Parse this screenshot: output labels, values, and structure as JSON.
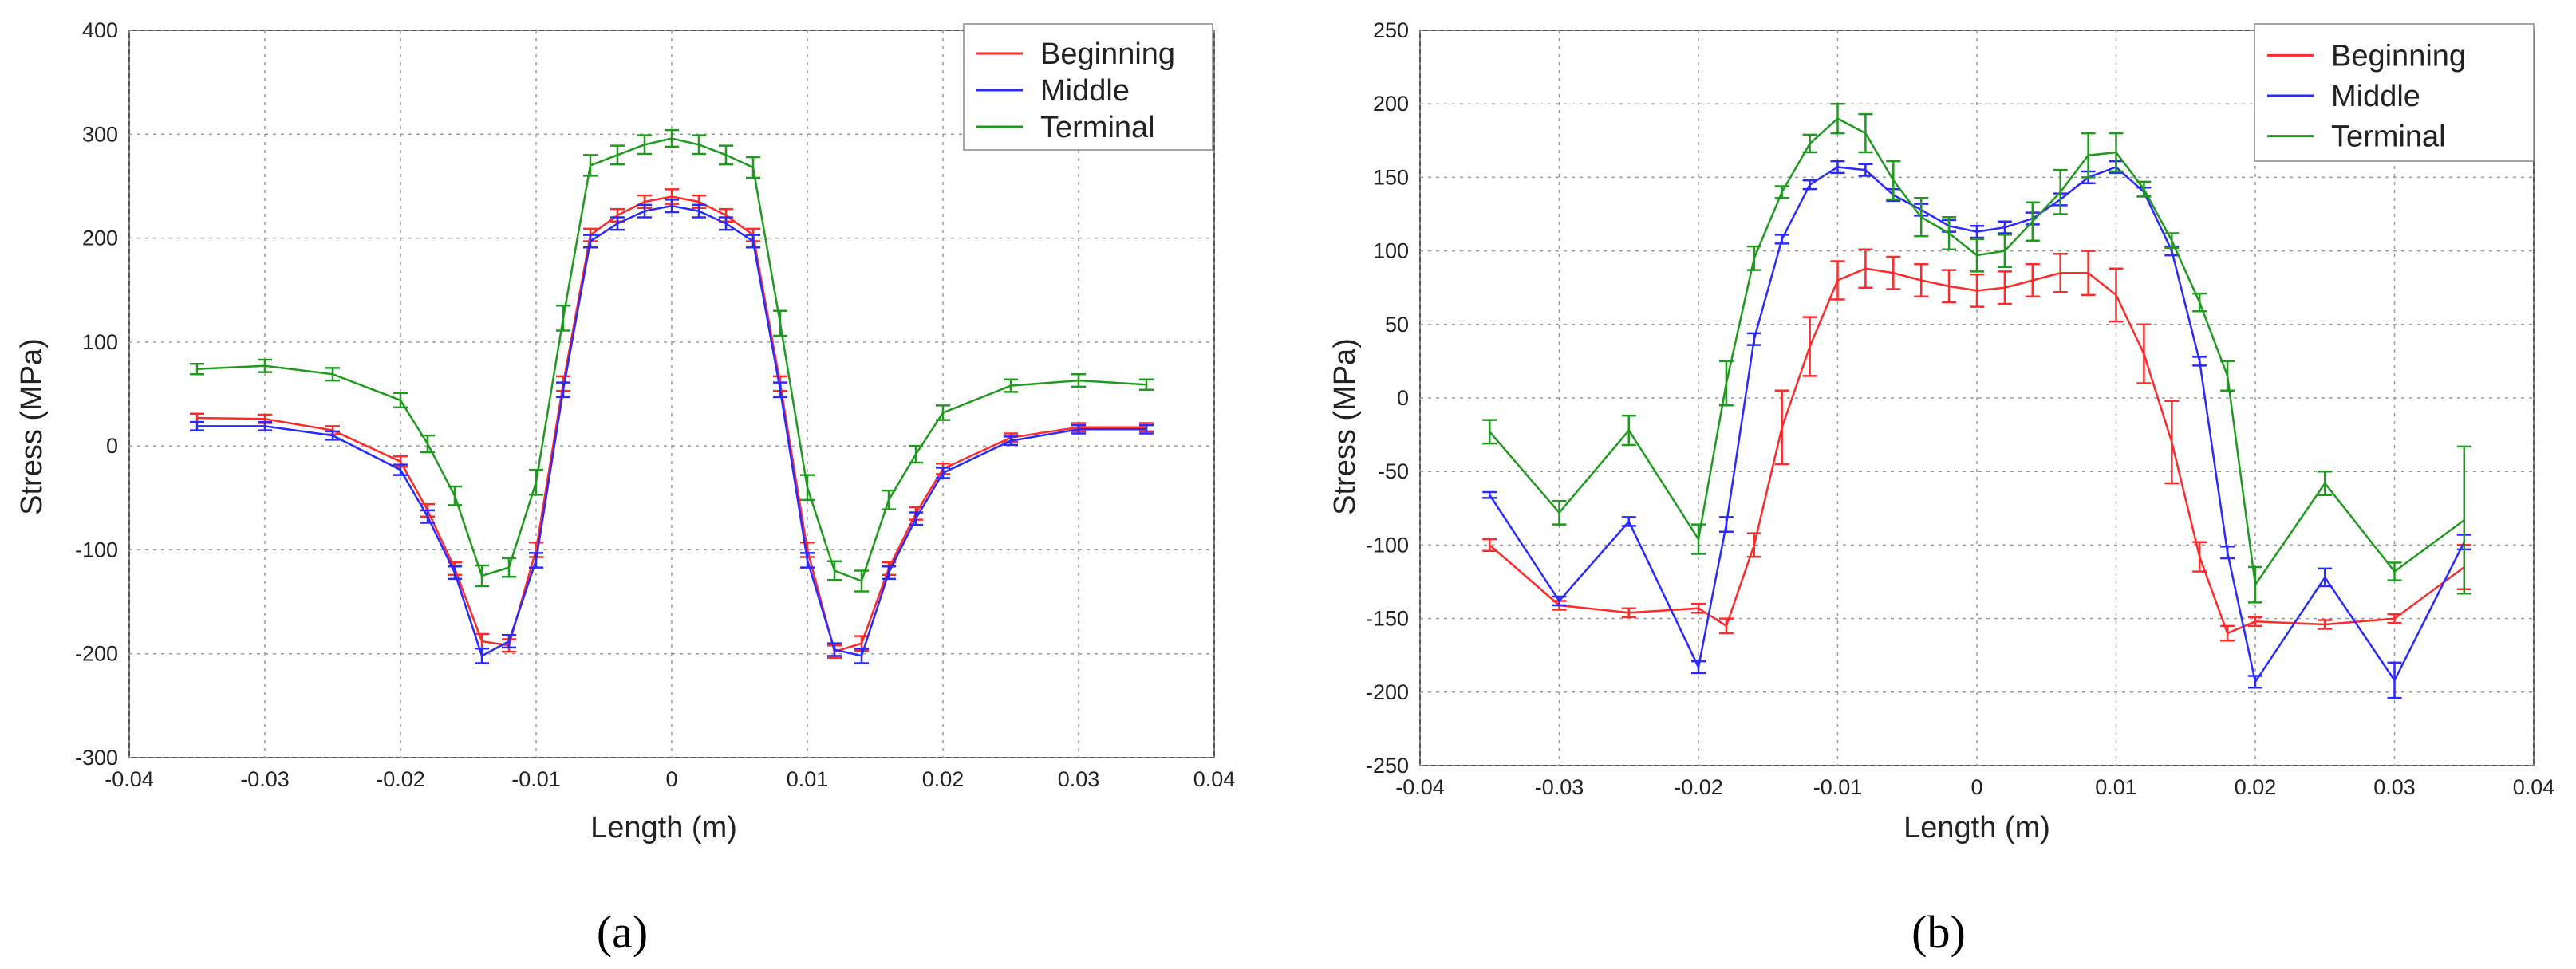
{
  "panel_labels": [
    "(a)",
    "(b)"
  ],
  "chart_data": [
    {
      "type": "line",
      "panel_label": "(a)",
      "xlabel": "Length (m)",
      "ylabel": "Stress (MPa)",
      "xlim": [
        -0.04,
        0.04
      ],
      "ylim": [
        -300,
        400
      ],
      "xticks": [
        -0.04,
        -0.03,
        -0.02,
        -0.01,
        0,
        0.01,
        0.02,
        0.03,
        0.04
      ],
      "xtick_labels": [
        "-0.04",
        "-0.03",
        "-0.02",
        "-0.01",
        "0",
        "0.01",
        "0.02",
        "0.03",
        "0.04"
      ],
      "yticks": [
        -300,
        -200,
        -100,
        0,
        100,
        200,
        300,
        400
      ],
      "ytick_labels": [
        "-300",
        "-200",
        "-100",
        "0",
        "100",
        "200",
        "300",
        "400"
      ],
      "grid": true,
      "legend_position": "top-right",
      "series": [
        {
          "name": "Beginning",
          "color": "#ff2a2a",
          "points": [
            {
              "x": -0.035,
              "y": 27,
              "err": 4
            },
            {
              "x": -0.03,
              "y": 26,
              "err": 4
            },
            {
              "x": -0.025,
              "y": 15,
              "err": 4
            },
            {
              "x": -0.02,
              "y": -15,
              "err": 5
            },
            {
              "x": -0.018,
              "y": -62,
              "err": 6
            },
            {
              "x": -0.016,
              "y": -118,
              "err": 6
            },
            {
              "x": -0.014,
              "y": -188,
              "err": 7
            },
            {
              "x": -0.012,
              "y": -192,
              "err": 6
            },
            {
              "x": -0.01,
              "y": -100,
              "err": 7
            },
            {
              "x": -0.008,
              "y": 60,
              "err": 7
            },
            {
              "x": -0.006,
              "y": 203,
              "err": 6
            },
            {
              "x": -0.004,
              "y": 222,
              "err": 6
            },
            {
              "x": -0.002,
              "y": 235,
              "err": 6
            },
            {
              "x": 0,
              "y": 240,
              "err": 7
            },
            {
              "x": 0.002,
              "y": 235,
              "err": 6
            },
            {
              "x": 0.004,
              "y": 222,
              "err": 6
            },
            {
              "x": 0.006,
              "y": 203,
              "err": 6
            },
            {
              "x": 0.008,
              "y": 60,
              "err": 7
            },
            {
              "x": 0.01,
              "y": -100,
              "err": 7
            },
            {
              "x": 0.012,
              "y": -198,
              "err": 6
            },
            {
              "x": 0.014,
              "y": -190,
              "err": 7
            },
            {
              "x": 0.016,
              "y": -118,
              "err": 6
            },
            {
              "x": 0.018,
              "y": -65,
              "err": 6
            },
            {
              "x": 0.02,
              "y": -22,
              "err": 5
            },
            {
              "x": 0.025,
              "y": 8,
              "err": 4
            },
            {
              "x": 0.03,
              "y": 18,
              "err": 4
            },
            {
              "x": 0.035,
              "y": 18,
              "err": 4
            }
          ]
        },
        {
          "name": "Middle",
          "color": "#2a2aff",
          "points": [
            {
              "x": -0.035,
              "y": 19,
              "err": 4
            },
            {
              "x": -0.03,
              "y": 19,
              "err": 4
            },
            {
              "x": -0.025,
              "y": 10,
              "err": 4
            },
            {
              "x": -0.02,
              "y": -23,
              "err": 5
            },
            {
              "x": -0.018,
              "y": -68,
              "err": 6
            },
            {
              "x": -0.016,
              "y": -122,
              "err": 6
            },
            {
              "x": -0.014,
              "y": -202,
              "err": 7
            },
            {
              "x": -0.012,
              "y": -188,
              "err": 6
            },
            {
              "x": -0.01,
              "y": -110,
              "err": 7
            },
            {
              "x": -0.008,
              "y": 54,
              "err": 7
            },
            {
              "x": -0.006,
              "y": 197,
              "err": 6
            },
            {
              "x": -0.004,
              "y": 214,
              "err": 6
            },
            {
              "x": -0.002,
              "y": 226,
              "err": 6
            },
            {
              "x": 0,
              "y": 231,
              "err": 6
            },
            {
              "x": 0.002,
              "y": 226,
              "err": 6
            },
            {
              "x": 0.004,
              "y": 214,
              "err": 6
            },
            {
              "x": 0.006,
              "y": 197,
              "err": 6
            },
            {
              "x": 0.008,
              "y": 54,
              "err": 7
            },
            {
              "x": 0.01,
              "y": -110,
              "err": 7
            },
            {
              "x": 0.012,
              "y": -196,
              "err": 6
            },
            {
              "x": 0.014,
              "y": -202,
              "err": 7
            },
            {
              "x": 0.016,
              "y": -122,
              "err": 6
            },
            {
              "x": 0.018,
              "y": -70,
              "err": 6
            },
            {
              "x": 0.02,
              "y": -26,
              "err": 5
            },
            {
              "x": 0.025,
              "y": 5,
              "err": 4
            },
            {
              "x": 0.03,
              "y": 16,
              "err": 4
            },
            {
              "x": 0.035,
              "y": 16,
              "err": 4
            }
          ]
        },
        {
          "name": "Terminal",
          "color": "#1f9a1f",
          "points": [
            {
              "x": -0.035,
              "y": 74,
              "err": 5
            },
            {
              "x": -0.03,
              "y": 77,
              "err": 6
            },
            {
              "x": -0.025,
              "y": 69,
              "err": 6
            },
            {
              "x": -0.02,
              "y": 44,
              "err": 7
            },
            {
              "x": -0.018,
              "y": 2,
              "err": 8
            },
            {
              "x": -0.016,
              "y": -48,
              "err": 9
            },
            {
              "x": -0.014,
              "y": -125,
              "err": 10
            },
            {
              "x": -0.012,
              "y": -117,
              "err": 9
            },
            {
              "x": -0.01,
              "y": -35,
              "err": 12
            },
            {
              "x": -0.008,
              "y": 123,
              "err": 12
            },
            {
              "x": -0.006,
              "y": 270,
              "err": 10
            },
            {
              "x": -0.004,
              "y": 280,
              "err": 9
            },
            {
              "x": -0.002,
              "y": 290,
              "err": 9
            },
            {
              "x": 0,
              "y": 296,
              "err": 8
            },
            {
              "x": 0.002,
              "y": 290,
              "err": 9
            },
            {
              "x": 0.004,
              "y": 280,
              "err": 9
            },
            {
              "x": 0.006,
              "y": 268,
              "err": 10
            },
            {
              "x": 0.008,
              "y": 118,
              "err": 12
            },
            {
              "x": 0.01,
              "y": -40,
              "err": 12
            },
            {
              "x": 0.012,
              "y": -120,
              "err": 9
            },
            {
              "x": 0.014,
              "y": -130,
              "err": 10
            },
            {
              "x": 0.016,
              "y": -52,
              "err": 9
            },
            {
              "x": 0.018,
              "y": -8,
              "err": 8
            },
            {
              "x": 0.02,
              "y": 32,
              "err": 7
            },
            {
              "x": 0.025,
              "y": 58,
              "err": 6
            },
            {
              "x": 0.03,
              "y": 63,
              "err": 6
            },
            {
              "x": 0.035,
              "y": 59,
              "err": 5
            }
          ]
        }
      ]
    },
    {
      "type": "line",
      "panel_label": "(b)",
      "xlabel": "Length (m)",
      "ylabel": "Stress (MPa)",
      "xlim": [
        -0.04,
        0.04
      ],
      "ylim": [
        -250,
        250
      ],
      "xticks": [
        -0.04,
        -0.03,
        -0.02,
        -0.01,
        0,
        0.01,
        0.02,
        0.03,
        0.04
      ],
      "xtick_labels": [
        "-0.04",
        "-0.03",
        "-0.02",
        "-0.01",
        "0",
        "0.01",
        "0.02",
        "0.03",
        "0.04"
      ],
      "yticks": [
        -250,
        -200,
        -150,
        -100,
        -50,
        0,
        50,
        100,
        150,
        200,
        250
      ],
      "ytick_labels": [
        "-250",
        "-200",
        "-150",
        "-100",
        "-50",
        "0",
        "50",
        "100",
        "150",
        "200",
        "250"
      ],
      "grid": true,
      "legend_position": "top-right",
      "series": [
        {
          "name": "Beginning",
          "color": "#ff2a2a",
          "points": [
            {
              "x": -0.035,
              "y": -100,
              "err": 4
            },
            {
              "x": -0.03,
              "y": -141,
              "err": 3
            },
            {
              "x": -0.025,
              "y": -146,
              "err": 3
            },
            {
              "x": -0.02,
              "y": -143,
              "err": 3
            },
            {
              "x": -0.018,
              "y": -155,
              "err": 5
            },
            {
              "x": -0.016,
              "y": -100,
              "err": 8
            },
            {
              "x": -0.014,
              "y": -20,
              "err": 25
            },
            {
              "x": -0.012,
              "y": 35,
              "err": 20
            },
            {
              "x": -0.01,
              "y": 80,
              "err": 13
            },
            {
              "x": -0.008,
              "y": 88,
              "err": 13
            },
            {
              "x": -0.006,
              "y": 85,
              "err": 11
            },
            {
              "x": -0.004,
              "y": 80,
              "err": 11
            },
            {
              "x": -0.002,
              "y": 76,
              "err": 11
            },
            {
              "x": 0,
              "y": 73,
              "err": 11
            },
            {
              "x": 0.002,
              "y": 75,
              "err": 11
            },
            {
              "x": 0.004,
              "y": 80,
              "err": 11
            },
            {
              "x": 0.006,
              "y": 85,
              "err": 13
            },
            {
              "x": 0.008,
              "y": 85,
              "err": 15
            },
            {
              "x": 0.01,
              "y": 70,
              "err": 18
            },
            {
              "x": 0.012,
              "y": 30,
              "err": 20
            },
            {
              "x": 0.014,
              "y": -30,
              "err": 28
            },
            {
              "x": 0.016,
              "y": -108,
              "err": 10
            },
            {
              "x": 0.018,
              "y": -160,
              "err": 5
            },
            {
              "x": 0.02,
              "y": -152,
              "err": 3
            },
            {
              "x": 0.025,
              "y": -154,
              "err": 3
            },
            {
              "x": 0.03,
              "y": -150,
              "err": 3
            },
            {
              "x": 0.035,
              "y": -115,
              "err": 15
            }
          ]
        },
        {
          "name": "Middle",
          "color": "#2a2aff",
          "points": [
            {
              "x": -0.035,
              "y": -66,
              "err": 2
            },
            {
              "x": -0.03,
              "y": -138,
              "err": 3
            },
            {
              "x": -0.025,
              "y": -84,
              "err": 3
            },
            {
              "x": -0.02,
              "y": -183,
              "err": 4
            },
            {
              "x": -0.018,
              "y": -86,
              "err": 5
            },
            {
              "x": -0.016,
              "y": 40,
              "err": 4
            },
            {
              "x": -0.014,
              "y": 108,
              "err": 3
            },
            {
              "x": -0.012,
              "y": 145,
              "err": 3
            },
            {
              "x": -0.01,
              "y": 157,
              "err": 4
            },
            {
              "x": -0.008,
              "y": 155,
              "err": 4
            },
            {
              "x": -0.006,
              "y": 138,
              "err": 4
            },
            {
              "x": -0.004,
              "y": 128,
              "err": 4
            },
            {
              "x": -0.002,
              "y": 117,
              "err": 4
            },
            {
              "x": 0,
              "y": 113,
              "err": 4
            },
            {
              "x": 0.002,
              "y": 116,
              "err": 4
            },
            {
              "x": 0.004,
              "y": 122,
              "err": 4
            },
            {
              "x": 0.006,
              "y": 135,
              "err": 4
            },
            {
              "x": 0.008,
              "y": 150,
              "err": 4
            },
            {
              "x": 0.01,
              "y": 157,
              "err": 4
            },
            {
              "x": 0.012,
              "y": 140,
              "err": 3
            },
            {
              "x": 0.014,
              "y": 100,
              "err": 3
            },
            {
              "x": 0.016,
              "y": 25,
              "err": 3
            },
            {
              "x": 0.018,
              "y": -105,
              "err": 4
            },
            {
              "x": 0.02,
              "y": -193,
              "err": 4
            },
            {
              "x": 0.025,
              "y": -122,
              "err": 6
            },
            {
              "x": 0.03,
              "y": -192,
              "err": 12
            },
            {
              "x": 0.035,
              "y": -98,
              "err": 5
            }
          ]
        },
        {
          "name": "Terminal",
          "color": "#1f9a1f",
          "points": [
            {
              "x": -0.035,
              "y": -23,
              "err": 8
            },
            {
              "x": -0.03,
              "y": -78,
              "err": 8
            },
            {
              "x": -0.025,
              "y": -22,
              "err": 10
            },
            {
              "x": -0.02,
              "y": -96,
              "err": 10
            },
            {
              "x": -0.018,
              "y": 10,
              "err": 15
            },
            {
              "x": -0.016,
              "y": 95,
              "err": 8
            },
            {
              "x": -0.014,
              "y": 140,
              "err": 4
            },
            {
              "x": -0.012,
              "y": 173,
              "err": 6
            },
            {
              "x": -0.01,
              "y": 190,
              "err": 10
            },
            {
              "x": -0.008,
              "y": 180,
              "err": 13
            },
            {
              "x": -0.006,
              "y": 148,
              "err": 13
            },
            {
              "x": -0.004,
              "y": 123,
              "err": 13
            },
            {
              "x": -0.002,
              "y": 112,
              "err": 11
            },
            {
              "x": 0,
              "y": 97,
              "err": 11
            },
            {
              "x": 0.002,
              "y": 100,
              "err": 11
            },
            {
              "x": 0.004,
              "y": 120,
              "err": 13
            },
            {
              "x": 0.006,
              "y": 140,
              "err": 15
            },
            {
              "x": 0.008,
              "y": 165,
              "err": 15
            },
            {
              "x": 0.01,
              "y": 167,
              "err": 13
            },
            {
              "x": 0.012,
              "y": 142,
              "err": 5
            },
            {
              "x": 0.014,
              "y": 107,
              "err": 5
            },
            {
              "x": 0.016,
              "y": 65,
              "err": 6
            },
            {
              "x": 0.018,
              "y": 15,
              "err": 10
            },
            {
              "x": 0.02,
              "y": -127,
              "err": 12
            },
            {
              "x": 0.025,
              "y": -58,
              "err": 8
            },
            {
              "x": 0.03,
              "y": -118,
              "err": 6
            },
            {
              "x": 0.035,
              "y": -83,
              "err": 50
            }
          ]
        }
      ]
    }
  ]
}
